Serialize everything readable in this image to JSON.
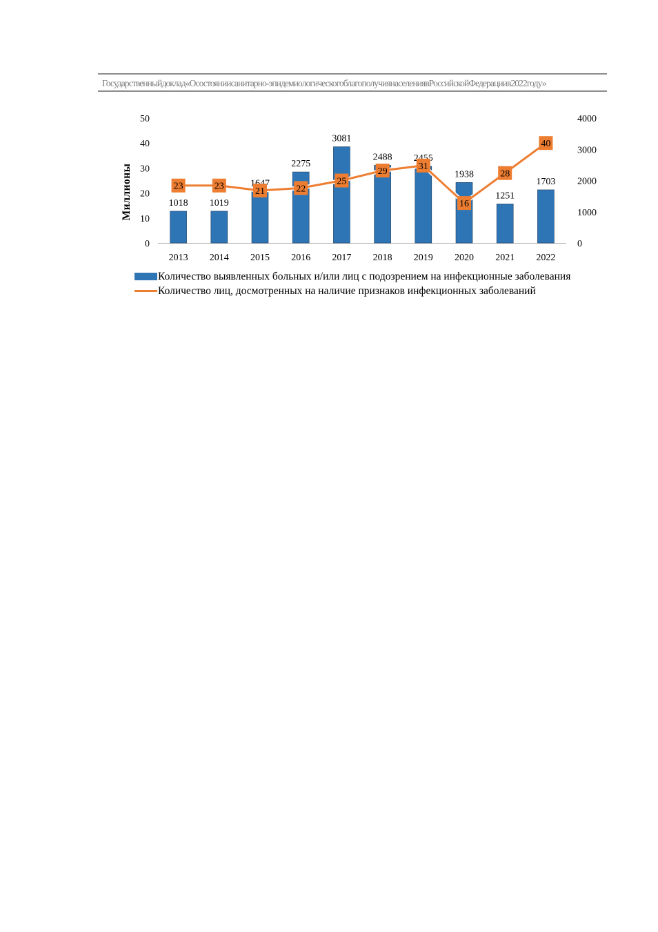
{
  "header": {
    "text": "Государственныйдоклад«Осостояниисанитарно-эпидемиологическогоблагополучиянаселениявРоссийскойФедерациив2022году»"
  },
  "chart_data": {
    "type": "bar",
    "title": "",
    "xlabel": "",
    "ylabel": "Миллионы",
    "ylim": [
      0,
      50
    ],
    "y2lim": [
      0,
      4000
    ],
    "yticks": [
      "50",
      "40",
      "30",
      "20",
      "10",
      "0"
    ],
    "y2ticks": [
      "4000",
      "3000",
      "2000",
      "1000",
      "0"
    ],
    "categories": [
      "2013",
      "2014",
      "2015",
      "2016",
      "2017",
      "2018",
      "2019",
      "2020",
      "2021",
      "2022"
    ],
    "series": [
      {
        "name": "Количество выявленных больных и/или лиц с подозрением на  инфекционные заболевания",
        "kind": "bar",
        "axis": "right",
        "color": "#2e75b6",
        "values": [
          1018,
          1019,
          1647,
          2275,
          3081,
          2488,
          2455,
          1938,
          1251,
          1703
        ],
        "labels": [
          "1018",
          "1019",
          "1647",
          "2275",
          "3081",
          "2488",
          "2455",
          "1938",
          "1251",
          "1703"
        ]
      },
      {
        "name": "Количество лиц, досмотренных на наличие  признаков инфекционных заболеваний",
        "kind": "line",
        "axis": "left",
        "color": "#ed7d31",
        "values": [
          23,
          23,
          21,
          22,
          25,
          29,
          31,
          16,
          28,
          40
        ],
        "labels": [
          "23",
          "23",
          "21",
          "22",
          "25",
          "29",
          "31",
          "16",
          "28",
          "40"
        ]
      }
    ],
    "legend_position": "bottom"
  }
}
